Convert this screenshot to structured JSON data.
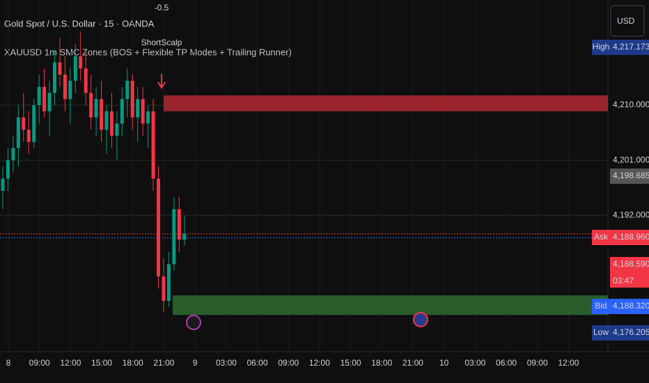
{
  "header": {
    "symbol": "Gold Spot / U.S. Dollar · 15 · OANDA",
    "indicator": "XAUUSD 1m SMC Zones (BOS + Flexible TP Modes + Trailing Runner)",
    "currency": "USD"
  },
  "signal": {
    "value": -0.5,
    "label": "ShortScalp"
  },
  "price_axis": {
    "ylim": [
      4169.7,
      4227.2
    ],
    "ticks": [
      {
        "value": 4210,
        "label": "4,210.000"
      },
      {
        "value": 4201,
        "label": "4,201.000"
      },
      {
        "value": 4192,
        "label": "4,192.000"
      }
    ]
  },
  "badges": [
    {
      "tag": "High",
      "value": 4217.173,
      "label": "4,217.173"
    },
    {
      "value": 4198.685,
      "label": "4,198.685"
    },
    {
      "tag": "Ask",
      "value": 4188.96,
      "label": "4,188.960"
    },
    {
      "value": 4188.59,
      "label": "4,188.590",
      "timer": "03:47"
    },
    {
      "tag": "Bid",
      "value": 4188.32,
      "label": "4,188.320"
    },
    {
      "tag": "Low",
      "value": 4176.205,
      "label": "4,176.205"
    }
  ],
  "time_axis": [
    "8",
    "09:00",
    "12:00",
    "15:00",
    "18:00",
    "21:00",
    "9",
    "03:00",
    "06:00",
    "09:00",
    "12:00",
    "15:00",
    "18:00",
    "21:00",
    "10",
    "03:00",
    "06:00",
    "09:00",
    "12:00"
  ],
  "zones": [
    {
      "top": 4211.6,
      "bottom": 4209,
      "color": "#b22833"
    },
    {
      "top": 4178.9,
      "bottom": 4175.7,
      "color": "#2e6b2f"
    }
  ],
  "candles": [
    [
      4196,
      4200,
      4193,
      4198
    ],
    [
      4198,
      4203,
      4196,
      4201
    ],
    [
      4201,
      4205,
      4199,
      4203
    ],
    [
      4203,
      4210,
      4200,
      4208
    ],
    [
      4208,
      4212,
      4204,
      4206
    ],
    [
      4206,
      4209,
      4202,
      4204
    ],
    [
      4204,
      4211,
      4203,
      4210
    ],
    [
      4210,
      4215,
      4207,
      4213
    ],
    [
      4213,
      4216,
      4208,
      4209
    ],
    [
      4209,
      4214,
      4205,
      4212
    ],
    [
      4212,
      4219,
      4210,
      4217
    ],
    [
      4217,
      4221,
      4213,
      4215
    ],
    [
      4215,
      4218,
      4209,
      4211
    ],
    [
      4211,
      4216,
      4207,
      4214
    ],
    [
      4214,
      4220,
      4212,
      4218
    ],
    [
      4218,
      4222,
      4214,
      4216
    ],
    [
      4216,
      4219,
      4210,
      4212
    ],
    [
      4212,
      4215,
      4206,
      4208
    ],
    [
      4208,
      4213,
      4205,
      4211
    ],
    [
      4211,
      4214,
      4204,
      4206
    ],
    [
      4206,
      4210,
      4202,
      4209
    ],
    [
      4209,
      4212,
      4203,
      4205
    ],
    [
      4205,
      4209,
      4201,
      4207
    ],
    [
      4207,
      4213,
      4205,
      4211
    ],
    [
      4211,
      4216,
      4208,
      4214
    ],
    [
      4214,
      4215,
      4206,
      4208
    ],
    [
      4208,
      4213,
      4204,
      4211
    ],
    [
      4211,
      4213,
      4205,
      4207
    ],
    [
      4207,
      4210,
      4203,
      4209
    ],
    [
      4209,
      4211,
      4196,
      4198
    ],
    [
      4198,
      4200,
      4180,
      4182
    ],
    [
      4182,
      4185,
      4176.2,
      4178
    ],
    [
      4178,
      4186,
      4177,
      4184
    ],
    [
      4184,
      4195,
      4183,
      4193
    ],
    [
      4193,
      4195,
      4186,
      4188
    ],
    [
      4188,
      4192,
      4187,
      4189
    ]
  ]
}
